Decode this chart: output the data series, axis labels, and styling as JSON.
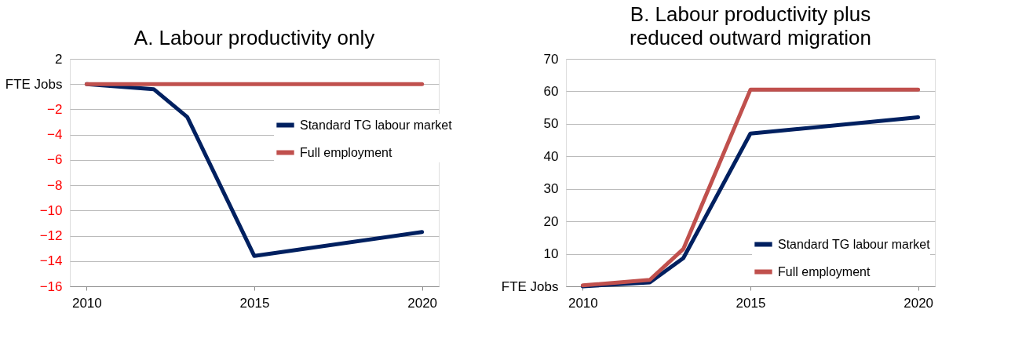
{
  "chart_data": [
    {
      "type": "line",
      "title": "A. Labour productivity only",
      "x": [
        2010,
        2012,
        2013,
        2015,
        2020
      ],
      "series": [
        {
          "name": "Standard TG labour market",
          "color": "#002060",
          "values": [
            0,
            -0.4,
            -2.6,
            -13.6,
            -11.7
          ]
        },
        {
          "name": "Full employment",
          "color": "#c0504d",
          "values": [
            0,
            0,
            0,
            0,
            0
          ]
        }
      ],
      "xlim": [
        2009.5,
        2020.5
      ],
      "xticks": [
        2010,
        2015,
        2020
      ],
      "ylim": [
        -16,
        2
      ],
      "yticks": [
        -16,
        -14,
        -12,
        -10,
        -8,
        -6,
        -4,
        -2,
        {
          "value": 0,
          "label": "FTE Jobs"
        },
        2
      ],
      "grid": "y",
      "legend": "right",
      "marker": "none",
      "line_style": "solid"
    },
    {
      "type": "line",
      "title": "B. Labour productivity plus reduced outward migration",
      "x": [
        2010,
        2012,
        2013,
        2015,
        2020
      ],
      "series": [
        {
          "name": "Standard TG labour market",
          "color": "#002060",
          "values": [
            0,
            1.2,
            8.7,
            47,
            52
          ]
        },
        {
          "name": "Full employment",
          "color": "#c0504d",
          "values": [
            0.3,
            2,
            11.5,
            60.5,
            60.5
          ]
        }
      ],
      "xlim": [
        2009.5,
        2020.5
      ],
      "xticks": [
        2010,
        2015,
        2020
      ],
      "ylim": [
        0,
        70
      ],
      "yticks": [
        {
          "value": 0,
          "label": "FTE Jobs"
        },
        10,
        20,
        30,
        40,
        50,
        60,
        70
      ],
      "grid": "y",
      "legend": "bottom right",
      "marker": "none",
      "line_style": "solid"
    }
  ]
}
